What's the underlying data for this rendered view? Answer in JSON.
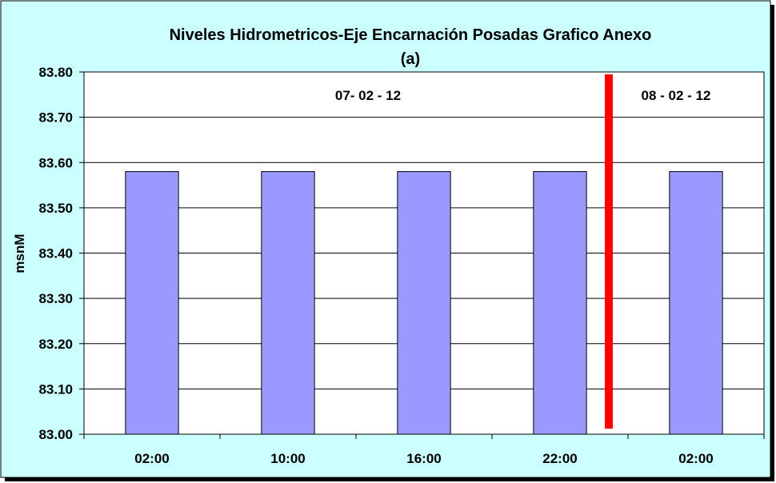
{
  "chart_data": {
    "type": "bar",
    "title": "Niveles Hidrometricos-Eje Encarnación Posadas Grafico Anexo",
    "subtitle": "(a)",
    "xlabel": "",
    "ylabel": "msnM",
    "categories": [
      "02:00",
      "10:00",
      "16:00",
      "22:00",
      "02:00"
    ],
    "values": [
      83.58,
      83.58,
      83.58,
      83.58,
      83.58
    ],
    "ylim": [
      83.0,
      83.8
    ],
    "yticks": [
      83.0,
      83.1,
      83.2,
      83.3,
      83.4,
      83.5,
      83.6,
      83.7,
      83.8
    ],
    "ytick_labels": [
      "83.00",
      "83.10",
      "83.20",
      "83.30",
      "83.40",
      "83.50",
      "83.60",
      "83.70",
      "83.80"
    ],
    "grid": true,
    "legend": "none",
    "annotations": [
      {
        "text": "07- 02 - 12",
        "position": "top-left-group"
      },
      {
        "text": "08 - 02 - 12",
        "position": "top-right-group"
      }
    ],
    "colors": {
      "background": "#ccffff",
      "plot_area": "#ffffff",
      "bar_fill": "#9999ff",
      "divider": "#ff0000",
      "text": "#000000"
    }
  }
}
